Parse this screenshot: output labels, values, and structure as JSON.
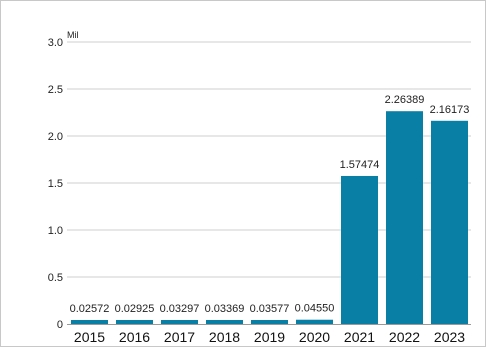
{
  "chart_data": {
    "type": "bar",
    "title": "",
    "xlabel": "",
    "ylabel": "",
    "unit_label": "Mil",
    "categories": [
      "2015",
      "2016",
      "2017",
      "2018",
      "2019",
      "2020",
      "2021",
      "2022",
      "2023"
    ],
    "values": [
      0.02572,
      0.02925,
      0.03297,
      0.03369,
      0.03577,
      0.0455,
      1.57474,
      2.26389,
      2.16173
    ],
    "data_labels": [
      "0.02572",
      "0.02925",
      "0.03297",
      "0.03369",
      "0.03577",
      "0.04550",
      "1.57474",
      "2.26389",
      "2.16173"
    ],
    "yticks": [
      0,
      0.5,
      1.0,
      1.5,
      2.0,
      2.5,
      3.0
    ],
    "ytick_labels": [
      "0",
      "0.5",
      "1.0",
      "1.5",
      "2.0",
      "2.5",
      "3.0"
    ],
    "ylim": [
      0,
      3.0
    ],
    "grid": true,
    "legend": "none",
    "bar_color": "#0a7fa5",
    "grid_color": "#cfcfcf"
  }
}
